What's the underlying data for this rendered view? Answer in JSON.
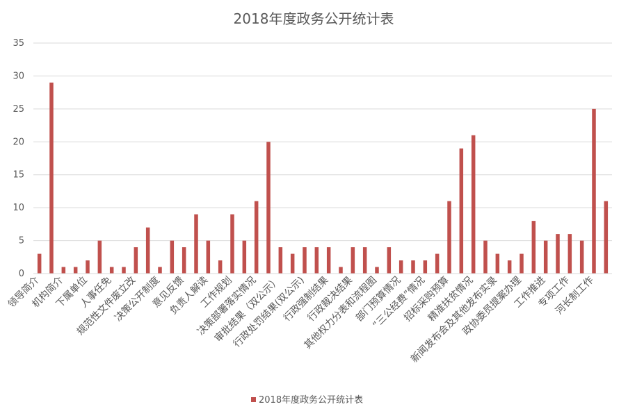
{
  "chart_data": {
    "type": "bar",
    "title": "2018年度政务公开统计表",
    "xlabel": "",
    "ylabel": "",
    "ylim": [
      0,
      35
    ],
    "yticks": [
      0,
      5,
      10,
      15,
      20,
      25,
      30,
      35
    ],
    "grid": true,
    "legend_position": "bottom",
    "color": "#c0504d",
    "categories": [
      "领导简介",
      "",
      "机构简介",
      "",
      "下属单位",
      "",
      "人事任免",
      "",
      "规范性文件废立改",
      "",
      "决策公开制度",
      "",
      "意见反馈",
      "",
      "负责人解读",
      "",
      "工作规划",
      "",
      "决策部署落实情况",
      "",
      "审批结果（双公示）",
      "",
      "行政处罚结果(双公示)",
      "",
      "行政强制结果",
      "",
      "行政裁决结果",
      "",
      "其他权力分表和流程图",
      "",
      "部门预算情况",
      "",
      "“三公经费”情况",
      "",
      "招标采购预算",
      "",
      "精准扶贫情况",
      "",
      "新闻发布会及其他发布实录",
      "",
      "政协委员提案办理",
      "",
      "工作推进",
      "",
      "专项工作",
      "",
      "河长制工作",
      ""
    ],
    "series": [
      {
        "name": "2018年度政务公开统计表",
        "values": [
          3,
          29,
          1,
          1,
          2,
          5,
          1,
          1,
          4,
          7,
          1,
          5,
          4,
          9,
          5,
          2,
          9,
          5,
          11,
          20,
          4,
          3,
          4,
          4,
          4,
          1,
          4,
          4,
          1,
          4,
          2,
          2,
          2,
          3,
          11,
          19,
          21,
          5,
          3,
          2,
          3,
          8,
          5,
          6,
          6,
          5,
          25,
          11
        ]
      }
    ]
  }
}
